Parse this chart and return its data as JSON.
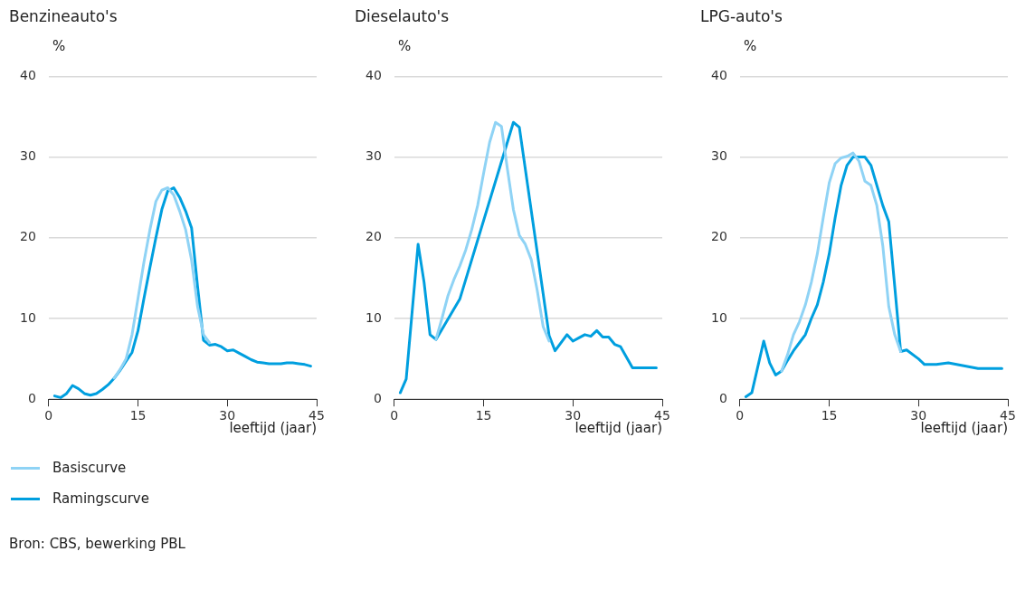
{
  "chart_data": [
    {
      "type": "line",
      "title": "Benzineauto's",
      "ylabel": "%",
      "xlabel": "leeftijd (jaar)",
      "xlim": [
        0,
        45
      ],
      "xticks": [
        0,
        15,
        30,
        45
      ],
      "ylim": [
        0,
        40
      ],
      "yticks": [
        0,
        10,
        20,
        30,
        40
      ],
      "grid": "y",
      "legend": "bottom",
      "annotations": [
        "Bron: CBS, bewerking PBL"
      ],
      "series": [
        {
          "name": "Basiscurve",
          "color": "#8fd3f5",
          "x": [
            11,
            12,
            13,
            14,
            15,
            16,
            17,
            18,
            19,
            20,
            21,
            22,
            23,
            24,
            25,
            26,
            27
          ],
          "values": [
            2.6,
            3.7,
            5,
            8,
            12.5,
            17,
            21,
            24.5,
            25.9,
            26.2,
            25.3,
            23.3,
            21,
            17.2,
            11.5,
            8,
            7
          ]
        },
        {
          "name": "Ramingscurve",
          "color": "#009fdf",
          "x": [
            1,
            2,
            3,
            4,
            5,
            6,
            7,
            8,
            9,
            10,
            11,
            12,
            13,
            14,
            15,
            16,
            17,
            18,
            19,
            20,
            21,
            22,
            23,
            24,
            25,
            26,
            27,
            28,
            29,
            30,
            31,
            32,
            33,
            34,
            35,
            36,
            37,
            38,
            39,
            40,
            41,
            42,
            43,
            44
          ],
          "values": [
            0.4,
            0.2,
            0.7,
            1.7,
            1.3,
            0.7,
            0.5,
            0.7,
            1.2,
            1.8,
            2.6,
            3.6,
            4.7,
            5.8,
            8.5,
            12.5,
            16.3,
            20,
            23.5,
            25.8,
            26.2,
            25,
            23.3,
            21.2,
            14,
            7.3,
            6.7,
            6.8,
            6.5,
            6,
            6.1,
            5.7,
            5.3,
            4.9,
            4.6,
            4.5,
            4.4,
            4.4,
            4.4,
            4.5,
            4.5,
            4.4,
            4.3,
            4.1
          ]
        }
      ]
    },
    {
      "type": "line",
      "title": "Dieselauto's",
      "ylabel": "%",
      "xlabel": "leeftijd (jaar)",
      "xlim": [
        0,
        45
      ],
      "xticks": [
        0,
        15,
        30,
        45
      ],
      "ylim": [
        0,
        40
      ],
      "yticks": [
        0,
        10,
        20,
        30,
        40
      ],
      "grid": "y",
      "series": [
        {
          "color": "#8fd3f5",
          "x": [
            7,
            8,
            9,
            10,
            11,
            12,
            13,
            14,
            15,
            16,
            17,
            18,
            19,
            20,
            21,
            22,
            23,
            24,
            25,
            26
          ],
          "values": [
            7.4,
            10,
            12.8,
            14.8,
            16.5,
            18.5,
            21,
            24,
            28,
            31.8,
            34.3,
            33.8,
            28.5,
            23.5,
            20.3,
            19.2,
            17.3,
            13.5,
            9,
            7.2
          ]
        },
        {
          "color": "#009fdf",
          "x": [
            1,
            2,
            4,
            5,
            6,
            7,
            11,
            20,
            21,
            26,
            27,
            29,
            30,
            31,
            32,
            33,
            34,
            35,
            36,
            37,
            38,
            40,
            44
          ],
          "values": [
            0.8,
            2.5,
            19.2,
            14.5,
            8,
            7.4,
            12.4,
            34.3,
            33.7,
            7.9,
            6,
            8,
            7.2,
            7.6,
            8,
            7.8,
            8.5,
            7.7,
            7.7,
            6.8,
            6.5,
            3.9,
            3.9
          ]
        }
      ]
    },
    {
      "type": "line",
      "title": "LPG-auto's",
      "ylabel": "%",
      "xlabel": "leeftijd (jaar)",
      "xlim": [
        0,
        45
      ],
      "xticks": [
        0,
        15,
        30,
        45
      ],
      "ylim": [
        0,
        40
      ],
      "yticks": [
        0,
        10,
        20,
        30,
        40
      ],
      "grid": "y",
      "series": [
        {
          "color": "#8fd3f5",
          "x": [
            7,
            8,
            9,
            10,
            11,
            12,
            13,
            14,
            15,
            16,
            17,
            18,
            19,
            20,
            21,
            22,
            23,
            24,
            25,
            26,
            27
          ],
          "values": [
            3.5,
            5.5,
            8,
            9.6,
            11.7,
            14.5,
            18,
            22.5,
            26.8,
            29.2,
            29.9,
            30.1,
            30.5,
            29.5,
            27,
            26.5,
            24,
            19,
            11.5,
            8,
            5.9
          ]
        },
        {
          "color": "#009fdf",
          "x": [
            1,
            2,
            4,
            5,
            6,
            7,
            8,
            9,
            10,
            11,
            12,
            13,
            14,
            15,
            16,
            17,
            18,
            19,
            20,
            21,
            22,
            23,
            24,
            25,
            26,
            27,
            28,
            30,
            31,
            33,
            35,
            40,
            44
          ],
          "values": [
            0.3,
            0.8,
            7.2,
            4.5,
            3,
            3.5,
            4.8,
            6,
            7,
            8,
            10,
            11.7,
            14.5,
            18,
            22.5,
            26.5,
            29,
            30,
            30,
            30,
            29,
            26.5,
            24,
            22,
            14,
            5.9,
            6.1,
            5,
            4.3,
            4.3,
            4.5,
            3.8,
            3.8
          ]
        }
      ]
    }
  ]
}
